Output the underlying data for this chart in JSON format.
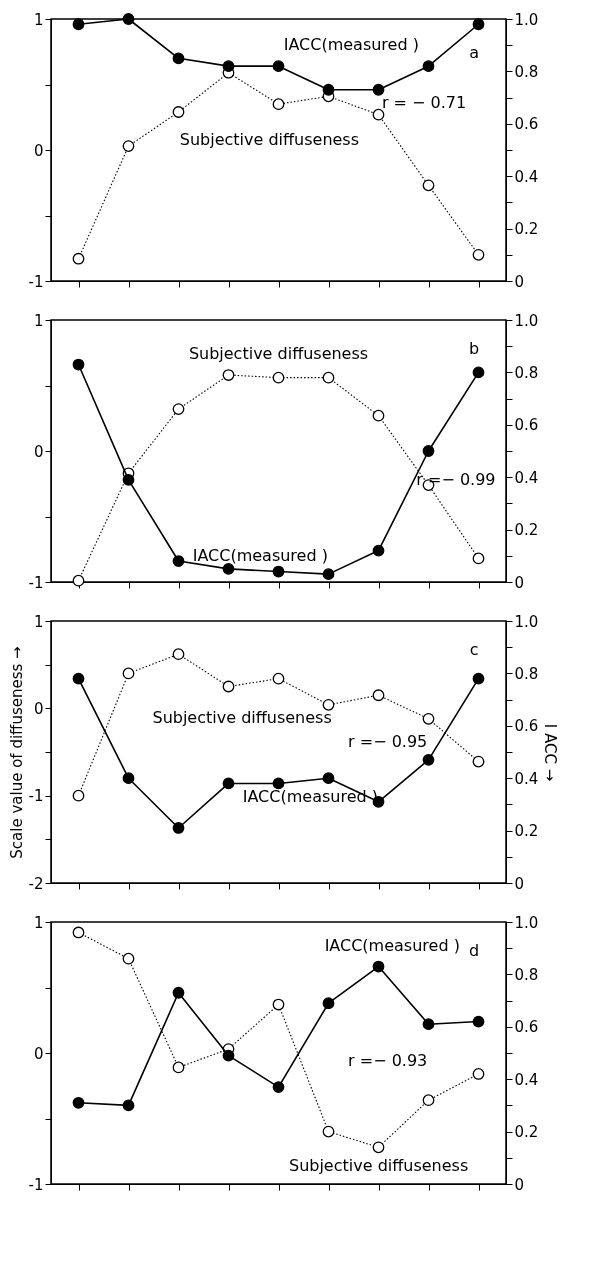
{
  "chart_data": [
    {
      "type": "line",
      "categories": [
        null,
        null,
        null,
        null,
        null,
        null,
        null,
        null,
        null
      ],
      "series": [
        {
          "name": "Subjective diffuseness",
          "color": "#000000",
          "line_style": "dotted",
          "marker": "circle",
          "values": [
            -0.83,
            0.03,
            0.29,
            0.59,
            0.35,
            0.41,
            0.27,
            -0.27,
            -0.8
          ]
        },
        {
          "name": "IACC(measured )",
          "color": "#000000",
          "line_style": "solid",
          "marker": "circle",
          "axis": "y2",
          "values": [
            0.98,
            1.0,
            0.85,
            0.82,
            0.82,
            0.73,
            0.73,
            0.82,
            0.98
          ]
        }
      ],
      "ylim": [
        -1,
        1
      ],
      "yticks": [
        -1,
        {
          "value": -0.5,
          "label": null
        },
        0,
        {
          "value": 0.5,
          "label": null
        },
        1
      ],
      "y2lim": [
        0,
        1
      ],
      "y2ticks": [
        0,
        {
          "value": 0.1,
          "label": null
        },
        0.2,
        {
          "value": 0.3,
          "label": null
        },
        0.4,
        {
          "value": 0.5,
          "label": null
        },
        0.6,
        {
          "value": 0.7,
          "label": null
        },
        0.8,
        {
          "value": 0.9,
          "label": null
        },
        {
          "value": 1,
          "label": "1.0"
        }
      ],
      "annotations": [
        "r = − 0.71",
        "a"
      ],
      "grid": false
    },
    {
      "type": "line",
      "categories": [
        null,
        null,
        null,
        null,
        null,
        null,
        null,
        null,
        null
      ],
      "series": [
        {
          "name": "Subjective diffuseness",
          "color": "#000000",
          "line_style": "dotted",
          "marker": "circle",
          "values": [
            -0.99,
            -0.17,
            0.32,
            0.58,
            0.56,
            0.56,
            0.27,
            -0.26,
            -0.82
          ]
        },
        {
          "name": "IACC(measured )",
          "color": "#000000",
          "line_style": "solid",
          "marker": "circle",
          "axis": "y2",
          "values": [
            0.83,
            0.39,
            0.08,
            0.05,
            0.04,
            0.03,
            0.12,
            0.5,
            0.8
          ]
        }
      ],
      "ylim": [
        -1,
        1
      ],
      "yticks": [
        -1,
        {
          "value": -0.5,
          "label": null
        },
        0,
        {
          "value": 0.5,
          "label": null
        },
        1
      ],
      "y2lim": [
        0,
        1
      ],
      "y2ticks": [
        0,
        {
          "value": 0.1,
          "label": null
        },
        0.2,
        {
          "value": 0.3,
          "label": null
        },
        0.4,
        {
          "value": 0.5,
          "label": null
        },
        0.6,
        {
          "value": 0.7,
          "label": null
        },
        0.8,
        {
          "value": 0.9,
          "label": null
        },
        {
          "value": 1,
          "label": "1.0"
        }
      ],
      "annotations": [
        "r =− 0.99",
        "b"
      ],
      "grid": false
    },
    {
      "type": "line",
      "categories": [
        null,
        null,
        null,
        null,
        null,
        null,
        null,
        null,
        null
      ],
      "series": [
        {
          "name": "Subjective diffuseness",
          "color": "#000000",
          "line_style": "dotted",
          "marker": "circle",
          "values": [
            -1.0,
            0.4,
            0.62,
            0.25,
            0.34,
            0.04,
            0.15,
            -0.12,
            -0.61
          ]
        },
        {
          "name": "IACC(measured )",
          "color": "#000000",
          "line_style": "solid",
          "marker": "circle",
          "axis": "y2",
          "values": [
            0.78,
            0.4,
            0.21,
            0.38,
            0.38,
            0.4,
            0.31,
            0.47,
            0.78
          ]
        }
      ],
      "ylim": [
        -2,
        1
      ],
      "yticks": [
        -2,
        {
          "value": -1.5,
          "label": null
        },
        -1,
        {
          "value": -0.5,
          "label": null
        },
        0,
        {
          "value": 0.5,
          "label": null
        },
        1
      ],
      "y2lim": [
        0,
        1
      ],
      "y2ticks": [
        0,
        {
          "value": 0.1,
          "label": null
        },
        0.2,
        {
          "value": 0.3,
          "label": null
        },
        0.4,
        {
          "value": 0.5,
          "label": null
        },
        0.6,
        {
          "value": 0.7,
          "label": null
        },
        0.8,
        {
          "value": 0.9,
          "label": null
        },
        {
          "value": 1,
          "label": "1.0"
        }
      ],
      "ylabel": "Scale value of diffuseness →",
      "y2label": "I ACC →",
      "annotations": [
        "r =− 0.95",
        "c"
      ],
      "grid": false
    },
    {
      "type": "line",
      "categories": [
        null,
        null,
        null,
        null,
        null,
        null,
        null,
        null,
        null
      ],
      "series": [
        {
          "name": "Subjective diffuseness",
          "color": "#000000",
          "line_style": "dotted",
          "marker": "circle",
          "values": [
            0.92,
            0.72,
            -0.11,
            0.03,
            0.37,
            -0.6,
            -0.72,
            -0.36,
            -0.16
          ]
        },
        {
          "name": "IACC(measured )",
          "color": "#000000",
          "line_style": "solid",
          "marker": "circle",
          "axis": "y2",
          "values": [
            0.31,
            0.3,
            0.73,
            0.49,
            0.37,
            0.69,
            0.83,
            0.61,
            0.62
          ]
        }
      ],
      "ylim": [
        -1,
        1
      ],
      "yticks": [
        -1,
        {
          "value": -0.5,
          "label": null
        },
        0,
        {
          "value": 0.5,
          "label": null
        },
        1
      ],
      "y2lim": [
        0,
        1
      ],
      "y2ticks": [
        0,
        {
          "value": 0.1,
          "label": null
        },
        0.2,
        {
          "value": 0.3,
          "label": null
        },
        0.4,
        {
          "value": 0.5,
          "label": null
        },
        0.6,
        {
          "value": 0.7,
          "label": null
        },
        0.8,
        {
          "value": 0.9,
          "label": null
        },
        {
          "value": 1,
          "label": "1.0"
        }
      ],
      "annotations": [
        "r =− 0.93",
        "d"
      ],
      "grid": false
    }
  ]
}
